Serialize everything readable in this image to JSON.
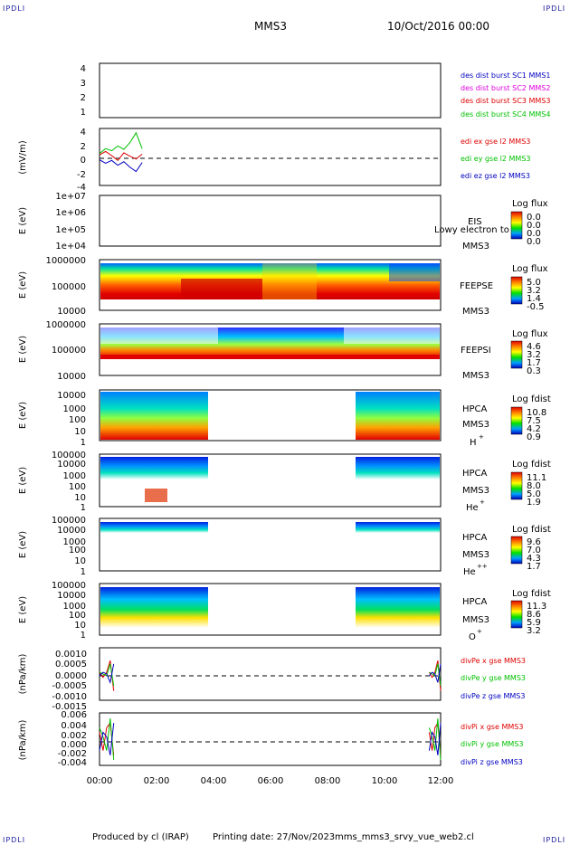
{
  "header": {
    "corner_left": "IPDLI",
    "corner_right": "IPDLI",
    "spacecraft": "MMS3",
    "date": "10/Oct/2016 00:00"
  },
  "footer": {
    "produced": "Produced by cl (IRAP)",
    "printing": "Printing date: 27/Nov/2023",
    "script": "mms_mms3_srvy_vue_web2.cl",
    "corner_left": "IPDLI",
    "corner_right": "IPDLI"
  },
  "colors": {
    "red": "#e00000",
    "magenta": "#e000e0",
    "green": "#00c000",
    "blue": "#0000c0",
    "bg": "#ffffff"
  },
  "chart_data": [
    {
      "type": "line",
      "title": "",
      "xlabel": "",
      "ylabel": "",
      "ylim": [
        0.6,
        4.6
      ],
      "ytick_labels": [
        "4",
        "3",
        "2",
        "1"
      ],
      "series": [
        {
          "name": "des dist burst SC1 MMS1",
          "values": []
        },
        {
          "name": "des dist burst SC2 MMS2",
          "values": []
        },
        {
          "name": "des dist burst SC3 MMS3",
          "values": []
        },
        {
          "name": "des dist burst SC4 MMS4",
          "values": []
        }
      ]
    },
    {
      "type": "line",
      "ylabel": "(mV/m)",
      "ylim": [
        -4,
        4
      ],
      "ytick_labels": [
        "4",
        "2",
        "0",
        "-2",
        "-4"
      ],
      "x_active_hours": [
        0.0,
        1.5
      ],
      "series": [
        {
          "name": "edi ex gse l2 MMS3",
          "values": [
            0.3,
            0.8,
            0.2,
            -0.5,
            0.6,
            0.1,
            -0.3,
            0.4
          ]
        },
        {
          "name": "edi ey gse l2 MMS3",
          "values": [
            0.5,
            1.2,
            0.9,
            1.6,
            1.1,
            2.1,
            3.5,
            1.2
          ]
        },
        {
          "name": "edi ez gse l2 MMS3",
          "values": [
            -0.4,
            -0.9,
            -0.5,
            -1.2,
            -0.7,
            -1.5,
            -2.1,
            -0.8
          ]
        }
      ]
    },
    {
      "type": "heatmap",
      "ylabel": "E (eV)",
      "ytick_labels": [
        "1e+07",
        "1e+06",
        "1e+05",
        "1e+04"
      ],
      "labels": [
        "EIS",
        "MMS3"
      ],
      "overlay_text": "Lowy electron to",
      "colorbar": {
        "title": "Log flux",
        "ticks": [
          "0.0",
          "0.0",
          "0.0",
          "0.0"
        ]
      },
      "data": "empty"
    },
    {
      "type": "heatmap",
      "ylabel": "E (eV)",
      "ytick_labels": [
        "1000000",
        "100000",
        "10000"
      ],
      "labels": [
        "FEEPSE",
        "MMS3"
      ],
      "colorbar": {
        "title": "Log flux",
        "ticks": [
          "5.0",
          "3.2",
          "1.4",
          "-0.5"
        ]
      }
    },
    {
      "type": "heatmap",
      "ylabel": "E (eV)",
      "ytick_labels": [
        "1000000",
        "100000",
        "10000"
      ],
      "labels": [
        "FEEPSI",
        "MMS3"
      ],
      "colorbar": {
        "title": "Log flux",
        "ticks": [
          "4.6",
          "3.2",
          "1.7",
          "0.3"
        ]
      }
    },
    {
      "type": "heatmap",
      "ylabel": "E (eV)",
      "ytick_labels": [
        "10000",
        "1000",
        "100",
        "10",
        "1"
      ],
      "labels": [
        "HPCA",
        "MMS3",
        "H",
        "+"
      ],
      "coverage_hours": [
        [
          0.0,
          3.8
        ],
        [
          8.9,
          12.0
        ]
      ],
      "colorbar": {
        "title": "Log fdist",
        "ticks": [
          "10.8",
          "7.5",
          "4.2",
          "0.9"
        ]
      }
    },
    {
      "type": "heatmap",
      "ylabel": "E (eV)",
      "ytick_labels": [
        "100000",
        "10000",
        "1000",
        "100",
        "10",
        "1"
      ],
      "labels": [
        "HPCA",
        "MMS3",
        "He",
        "+"
      ],
      "coverage_hours": [
        [
          0.0,
          3.8
        ],
        [
          9.0,
          12.0
        ]
      ],
      "colorbar": {
        "title": "Log fdist",
        "ticks": [
          "11.1",
          "8.0",
          "5.0",
          "1.9"
        ]
      }
    },
    {
      "type": "heatmap",
      "ylabel": "E (eV)",
      "ytick_labels": [
        "100000",
        "10000",
        "1000",
        "100",
        "10",
        "1"
      ],
      "labels": [
        "HPCA",
        "MMS3",
        "He",
        "++"
      ],
      "coverage_hours": [
        [
          0.0,
          3.8
        ],
        [
          9.0,
          12.0
        ]
      ],
      "colorbar": {
        "title": "Log fdist",
        "ticks": [
          "9.6",
          "7.0",
          "4.3",
          "1.7"
        ]
      }
    },
    {
      "type": "heatmap",
      "ylabel": "E (eV)",
      "ytick_labels": [
        "100000",
        "10000",
        "1000",
        "100",
        "10",
        "1"
      ],
      "labels": [
        "HPCA",
        "MMS3",
        "O",
        "+"
      ],
      "coverage_hours": [
        [
          0.0,
          3.8
        ],
        [
          9.0,
          12.0
        ]
      ],
      "colorbar": {
        "title": "Log fdist",
        "ticks": [
          "11.3",
          "8.6",
          "5.9",
          "3.2"
        ]
      }
    },
    {
      "type": "line",
      "ylabel": "(nPa/km)",
      "ylim": [
        -0.0015,
        0.0015
      ],
      "ytick_labels": [
        "0.0010",
        "0.0005",
        "0.0000",
        "-0.0005",
        "-0.0010",
        "-0.0015"
      ],
      "x_active_hours": [
        [
          0.0,
          0.5
        ],
        [
          11.6,
          12.0
        ]
      ],
      "series": [
        {
          "name": "divPe x gse MMS3",
          "values": [
            0.0001,
            -0.0002,
            0.0001,
            0.0008,
            -0.001
          ]
        },
        {
          "name": "divPe y gse MMS3",
          "values": [
            0.0001,
            0.0,
            -0.0001,
            0.0006,
            -0.0007
          ]
        },
        {
          "name": "divPe z gse MMS3",
          "values": [
            -0.0001,
            0.0001,
            0.0,
            -0.0005,
            0.0006
          ]
        }
      ]
    },
    {
      "type": "line",
      "ylabel": "(nPa/km)",
      "ylim": [
        -0.005,
        0.006
      ],
      "ytick_labels": [
        "0.006",
        "0.004",
        "0.002",
        "0.000",
        "-0.002",
        "-0.004"
      ],
      "x_active_hours": [
        [
          0.0,
          0.5
        ],
        [
          11.6,
          12.0
        ]
      ],
      "series": [
        {
          "name": "divPi x gse MMS3",
          "values": [
            0.002,
            -0.002,
            0.003,
            0.004,
            -0.003
          ]
        },
        {
          "name": "divPi y gse MMS3",
          "values": [
            0.003,
            0.001,
            -0.002,
            0.005,
            -0.004
          ]
        },
        {
          "name": "divPi z gse MMS3",
          "values": [
            -0.002,
            0.002,
            0.001,
            -0.003,
            0.004
          ]
        }
      ]
    }
  ],
  "x_axis": {
    "tick_labels": [
      "00:00",
      "02:00",
      "04:00",
      "06:00",
      "08:00",
      "10:00",
      "12:00"
    ],
    "range_hours": [
      0,
      12
    ]
  }
}
